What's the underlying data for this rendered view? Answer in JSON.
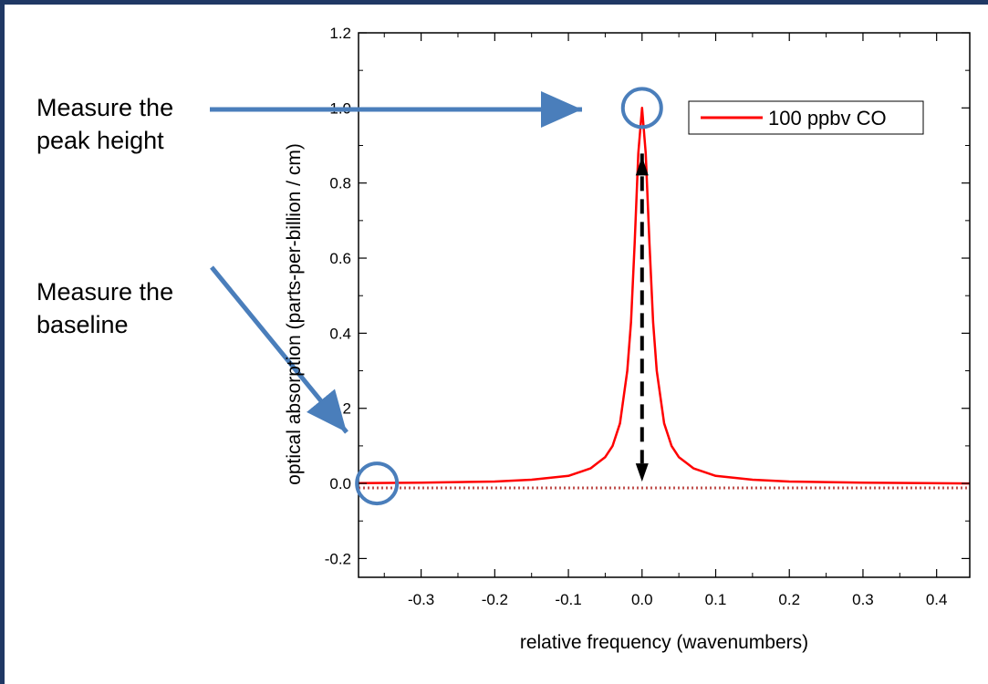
{
  "annotations": {
    "peak": {
      "line1": "Measure the",
      "line2": "peak height"
    },
    "baseline": {
      "line1": "Measure the",
      "line2": "baseline"
    }
  },
  "colors": {
    "frame": "#1f3864",
    "callout_arrow": "#4a7ebb",
    "series": "#ff0000",
    "measure_arrow": "#000000"
  },
  "chart_data": {
    "type": "line",
    "title": "",
    "xlabel": "relative frequency (wavenumbers)",
    "ylabel": "optical absorption (parts-per-billion / cm)",
    "xlim": [
      -0.385,
      0.445
    ],
    "ylim": [
      -0.25,
      1.2
    ],
    "x_ticks": [
      -0.3,
      -0.2,
      -0.1,
      0.0,
      0.1,
      0.2,
      0.3,
      0.4
    ],
    "x_tick_labels": [
      "-0.3",
      "-0.2",
      "-0.1",
      "0.0",
      "0.1",
      "0.2",
      "0.3",
      "0.4"
    ],
    "y_ticks": [
      -0.2,
      0.0,
      0.2,
      0.4,
      0.6,
      0.8,
      1.0,
      1.2
    ],
    "y_tick_labels": [
      "-0.2",
      "0.0",
      "0.2",
      "0.4",
      "0.6",
      "0.8",
      "1.0",
      "1.2"
    ],
    "grid": false,
    "legend_position": "top-right",
    "series": [
      {
        "name": "100 ppbv CO",
        "color": "#ff0000",
        "style": "solid",
        "x": [
          -0.385,
          -0.3,
          -0.2,
          -0.15,
          -0.1,
          -0.07,
          -0.05,
          -0.04,
          -0.03,
          -0.02,
          -0.015,
          -0.01,
          -0.005,
          0.0,
          0.005,
          0.01,
          0.015,
          0.02,
          0.03,
          0.04,
          0.05,
          0.07,
          0.1,
          0.15,
          0.2,
          0.3,
          0.445
        ],
        "y": [
          0.001,
          0.002,
          0.005,
          0.01,
          0.02,
          0.04,
          0.07,
          0.1,
          0.16,
          0.3,
          0.43,
          0.64,
          0.88,
          1.0,
          0.88,
          0.64,
          0.43,
          0.3,
          0.16,
          0.1,
          0.07,
          0.04,
          0.02,
          0.01,
          0.005,
          0.002,
          0.0
        ]
      },
      {
        "name": "baseline",
        "color": "#c0504d",
        "style": "dotted",
        "x": [
          -0.385,
          0.445
        ],
        "y": [
          -0.012,
          -0.012
        ]
      }
    ],
    "annotations": [
      {
        "type": "circle",
        "label": "peak",
        "x": 0.0,
        "y": 1.0
      },
      {
        "type": "circle",
        "label": "baseline",
        "x": -0.36,
        "y": 0.0
      },
      {
        "type": "double-arrow",
        "label": "peak height",
        "x": 0.0,
        "y_from": 0.0,
        "y_to": 1.0
      }
    ]
  }
}
